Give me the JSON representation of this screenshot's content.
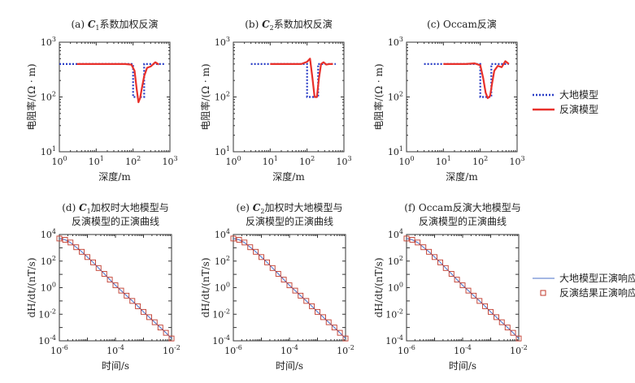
{
  "colors": {
    "model_line": "#2b3fc6",
    "inversion_line": "#e8302a",
    "response_line": "#4a6fc8",
    "marker": "#c0392b",
    "axis": "#333333"
  },
  "legend_top": {
    "model": "大地模型",
    "inversion": "反演模型"
  },
  "legend_bottom": {
    "model_response": "大地模型正演响应",
    "inversion_response": "反演结果正演响应"
  },
  "chart_data": [
    {
      "type": "line",
      "title_prefix": "(a) ",
      "title_var": "C",
      "title_sub": "1",
      "title_rest": "系数加权反演",
      "xlabel": "深度/m",
      "ylabel": "电阻率/(Ω · m)",
      "xscale": "log",
      "yscale": "log",
      "xlim": [
        1,
        1000
      ],
      "ylim": [
        10,
        1000
      ],
      "xticks": [
        "10^0",
        "10^1",
        "10^2",
        "10^3"
      ],
      "yticks": [
        "10^1",
        "10^2",
        "10^3"
      ],
      "series": [
        {
          "name": "大地模型",
          "style": "dotted",
          "x": [
            1,
            100,
            100,
            200,
            200,
            700
          ],
          "y": [
            400,
            400,
            100,
            100,
            400,
            400
          ]
        },
        {
          "name": "反演模型",
          "style": "solid",
          "x": [
            3,
            30,
            60,
            90,
            110,
            125,
            140,
            155,
            175,
            200,
            240,
            300,
            400,
            500
          ],
          "y": [
            400,
            400,
            400,
            390,
            300,
            140,
            80,
            95,
            150,
            240,
            340,
            360,
            430,
            390
          ]
        }
      ]
    },
    {
      "type": "line",
      "title_prefix": "(b) ",
      "title_var": "C",
      "title_sub": "2",
      "title_rest": "系数加权反演",
      "xlabel": "深度/m",
      "ylabel": "电阻率/(Ω · m)",
      "xscale": "log",
      "yscale": "log",
      "xlim": [
        1,
        1000
      ],
      "ylim": [
        10,
        1000
      ],
      "xticks": [
        "10^0",
        "10^1",
        "10^2",
        "10^3"
      ],
      "yticks": [
        "10^1",
        "10^2",
        "10^3"
      ],
      "series": [
        {
          "name": "大地模型",
          "style": "dotted",
          "x": [
            3,
            100,
            100,
            200,
            200,
            600
          ],
          "y": [
            400,
            400,
            100,
            100,
            400,
            400
          ]
        },
        {
          "name": "反演模型",
          "style": "solid",
          "x": [
            10,
            40,
            70,
            100,
            120,
            140,
            160,
            185,
            210,
            240,
            280,
            330,
            400,
            500
          ],
          "y": [
            400,
            400,
            400,
            440,
            500,
            220,
            100,
            100,
            220,
            400,
            430,
            390,
            400,
            400
          ]
        }
      ]
    },
    {
      "type": "line",
      "title_prefix": "(c) ",
      "title_var": "",
      "title_sub": "",
      "title_rest": "Occam反演",
      "xlabel": "深度/m",
      "ylabel": "电阻率/(Ω · m)",
      "xscale": "log",
      "yscale": "log",
      "xlim": [
        1,
        1000
      ],
      "ylim": [
        10,
        1000
      ],
      "xticks": [
        "10^0",
        "10^1",
        "10^2",
        "10^3"
      ],
      "yticks": [
        "10^1",
        "10^2",
        "10^3"
      ],
      "series": [
        {
          "name": "大地模型",
          "style": "dotted",
          "x": [
            3,
            100,
            100,
            200,
            200,
            600
          ],
          "y": [
            400,
            400,
            100,
            100,
            400,
            400
          ]
        },
        {
          "name": "反演模型",
          "style": "solid",
          "x": [
            10,
            40,
            70,
            100,
            120,
            140,
            160,
            185,
            210,
            240,
            300,
            380,
            480,
            600
          ],
          "y": [
            400,
            400,
            410,
            380,
            220,
            120,
            95,
            105,
            180,
            300,
            370,
            350,
            450,
            400
          ]
        }
      ]
    },
    {
      "type": "line",
      "title_prefix": "(d) ",
      "title_var": "C",
      "title_sub": "1",
      "title_rest": "加权时大地模型与",
      "title_line2": "反演模型的正演曲线",
      "xlabel": "时间/s",
      "ylabel": "dH/dt/(nT/s)",
      "xscale": "log",
      "yscale": "log",
      "xlim": [
        1e-06,
        0.01
      ],
      "ylim": [
        0.0001,
        10000
      ],
      "xticks": [
        "10^-6",
        "10^-4",
        "10^-2"
      ],
      "yticks": [
        "10^-4",
        "10^-2",
        "10^0",
        "10^2",
        "10^4"
      ],
      "series": [
        {
          "name": "大地模型正演响应",
          "style": "line",
          "x": [
            1e-06,
            1.6e-06,
            2.5e-06,
            4e-06,
            6.3e-06,
            1e-05,
            1.6e-05,
            2.5e-05,
            4e-05,
            6.3e-05,
            0.0001,
            0.00016,
            0.00025,
            0.0004,
            0.00063,
            0.001,
            0.0016,
            0.0025,
            0.004,
            0.0063,
            0.01
          ],
          "y": [
            5000,
            4000,
            2500,
            1100,
            500,
            200,
            80,
            30,
            11,
            4,
            1.5,
            0.6,
            0.25,
            0.1,
            0.04,
            0.015,
            0.006,
            0.0025,
            0.001,
            0.0004,
            0.00015
          ]
        },
        {
          "name": "反演结果正演响应",
          "style": "marker",
          "x": [
            1e-06,
            1.6e-06,
            2.5e-06,
            4e-06,
            6.3e-06,
            1e-05,
            1.6e-05,
            2.5e-05,
            4e-05,
            6.3e-05,
            0.0001,
            0.00016,
            0.00025,
            0.0004,
            0.00063,
            0.001,
            0.0016,
            0.0025,
            0.004,
            0.0063,
            0.01
          ],
          "y": [
            5000,
            4000,
            2500,
            1100,
            500,
            200,
            80,
            30,
            11,
            4,
            1.5,
            0.6,
            0.25,
            0.1,
            0.04,
            0.015,
            0.006,
            0.0025,
            0.001,
            0.0004,
            0.00015
          ]
        }
      ]
    },
    {
      "type": "line",
      "title_prefix": "(e) ",
      "title_var": "C",
      "title_sub": "2",
      "title_rest": "加权时大地模型与",
      "title_line2": "反演模型的正演曲线",
      "xlabel": "时间/s",
      "ylabel": "dH/dt/(nT/s)",
      "xscale": "log",
      "yscale": "log",
      "xlim": [
        1e-06,
        0.01
      ],
      "ylim": [
        0.0001,
        10000
      ],
      "xticks": [
        "10^-6",
        "10^-4",
        "10^-2"
      ],
      "yticks": [
        "10^-4",
        "10^-2",
        "10^0",
        "10^2",
        "10^4"
      ],
      "series": [
        {
          "name": "大地模型正演响应",
          "style": "line",
          "x": [
            1e-06,
            1.6e-06,
            2.5e-06,
            4e-06,
            6.3e-06,
            1e-05,
            1.6e-05,
            2.5e-05,
            4e-05,
            6.3e-05,
            0.0001,
            0.00016,
            0.00025,
            0.0004,
            0.00063,
            0.001,
            0.0016,
            0.0025,
            0.004,
            0.0063,
            0.01
          ],
          "y": [
            5000,
            4000,
            2500,
            1100,
            500,
            200,
            80,
            30,
            11,
            4,
            1.5,
            0.6,
            0.25,
            0.1,
            0.04,
            0.015,
            0.006,
            0.0025,
            0.001,
            0.0004,
            0.00015
          ]
        },
        {
          "name": "反演结果正演响应",
          "style": "marker",
          "x": [
            1e-06,
            1.6e-06,
            2.5e-06,
            4e-06,
            6.3e-06,
            1e-05,
            1.6e-05,
            2.5e-05,
            4e-05,
            6.3e-05,
            0.0001,
            0.00016,
            0.00025,
            0.0004,
            0.00063,
            0.001,
            0.0016,
            0.0025,
            0.004,
            0.0063,
            0.01
          ],
          "y": [
            5000,
            4000,
            2500,
            1100,
            500,
            200,
            80,
            30,
            11,
            4,
            1.5,
            0.6,
            0.25,
            0.1,
            0.04,
            0.015,
            0.006,
            0.0025,
            0.001,
            0.0004,
            0.00015
          ]
        }
      ]
    },
    {
      "type": "line",
      "title_prefix": "(f) ",
      "title_var": "",
      "title_sub": "",
      "title_rest": "Occam反演大地模型与",
      "title_line2": "反演模型的正演曲线",
      "xlabel": "时间/s",
      "ylabel": "dH/dt/(nT/s)",
      "xscale": "log",
      "yscale": "log",
      "xlim": [
        1e-06,
        0.01
      ],
      "ylim": [
        0.0001,
        10000
      ],
      "xticks": [
        "10^-6",
        "10^-4",
        "10^-2"
      ],
      "yticks": [
        "10^-4",
        "10^-2",
        "10^0",
        "10^2",
        "10^4"
      ],
      "series": [
        {
          "name": "大地模型正演响应",
          "style": "line",
          "x": [
            1e-06,
            1.6e-06,
            2.5e-06,
            4e-06,
            6.3e-06,
            1e-05,
            1.6e-05,
            2.5e-05,
            4e-05,
            6.3e-05,
            0.0001,
            0.00016,
            0.00025,
            0.0004,
            0.00063,
            0.001,
            0.0016,
            0.0025,
            0.004,
            0.0063,
            0.01
          ],
          "y": [
            5000,
            4000,
            2500,
            1100,
            500,
            200,
            80,
            30,
            11,
            4,
            1.5,
            0.6,
            0.25,
            0.1,
            0.04,
            0.015,
            0.006,
            0.0025,
            0.001,
            0.0004,
            0.00015
          ]
        },
        {
          "name": "反演结果正演响应",
          "style": "marker",
          "x": [
            1e-06,
            1.6e-06,
            2.5e-06,
            4e-06,
            6.3e-06,
            1e-05,
            1.6e-05,
            2.5e-05,
            4e-05,
            6.3e-05,
            0.0001,
            0.00016,
            0.00025,
            0.0004,
            0.00063,
            0.001,
            0.0016,
            0.0025,
            0.004,
            0.0063,
            0.01
          ],
          "y": [
            5000,
            4000,
            2500,
            1100,
            500,
            200,
            80,
            30,
            11,
            4,
            1.5,
            0.6,
            0.25,
            0.1,
            0.04,
            0.015,
            0.006,
            0.0025,
            0.001,
            0.0004,
            0.00015
          ]
        }
      ]
    }
  ]
}
